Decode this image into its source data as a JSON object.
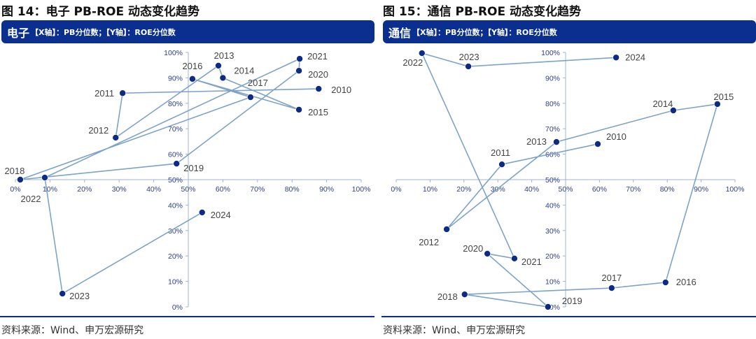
{
  "panels": [
    {
      "figure_title": "图 14：电子 PB-ROE 动态变化趋势",
      "header_industry": "电子",
      "header_axes": "【X轴】：PB分位数；【Y轴】：ROE分位数",
      "source": "资料来源：Wind、申万宏源研究"
    },
    {
      "figure_title": "图 15：通信 PB-ROE 动态变化趋势",
      "header_industry": "通信",
      "header_axes": "【X轴】：PB分位数；【Y轴】：ROE分位数",
      "source": "资料来源：Wind、申万宏源研究"
    }
  ],
  "colors": {
    "header": "#0b2f8f",
    "marker": "#0d2a86",
    "line": "#7ea3c9",
    "axis": "#9fb4d4",
    "tick_text": "#2c3f8c"
  },
  "chart_data": [
    {
      "type": "line",
      "title": "电子 PB-ROE 动态变化趋势",
      "xlabel": "PB分位数",
      "ylabel": "ROE分位数",
      "xlim": [
        0,
        1
      ],
      "ylim": [
        0,
        1
      ],
      "axes_cross": [
        0.5,
        0.5
      ],
      "grid": false,
      "x_ticks": [
        "0%",
        "10%",
        "20%",
        "30%",
        "40%",
        "50%",
        "60%",
        "70%",
        "80%",
        "90%",
        "100%"
      ],
      "y_ticks": [
        "0%",
        "10%",
        "20%",
        "30%",
        "40%",
        "50%",
        "60%",
        "70%",
        "80%",
        "90%",
        "100%"
      ],
      "points": [
        {
          "label": "2010",
          "x": 0.877,
          "y": 0.857
        },
        {
          "label": "2011",
          "x": 0.31,
          "y": 0.84
        },
        {
          "label": "2012",
          "x": 0.29,
          "y": 0.665
        },
        {
          "label": "2013",
          "x": 0.587,
          "y": 0.948
        },
        {
          "label": "2014",
          "x": 0.6,
          "y": 0.9
        },
        {
          "label": "2015",
          "x": 0.82,
          "y": 0.775
        },
        {
          "label": "2016",
          "x": 0.512,
          "y": 0.896
        },
        {
          "label": "2017",
          "x": 0.68,
          "y": 0.824
        },
        {
          "label": "2018",
          "x": 0.014,
          "y": 0.5
        },
        {
          "label": "2019",
          "x": 0.466,
          "y": 0.563
        },
        {
          "label": "2020",
          "x": 0.82,
          "y": 0.928
        },
        {
          "label": "2021",
          "x": 0.822,
          "y": 0.975
        },
        {
          "label": "2022",
          "x": 0.085,
          "y": 0.508
        },
        {
          "label": "2023",
          "x": 0.136,
          "y": 0.052
        },
        {
          "label": "2024",
          "x": 0.54,
          "y": 0.371
        }
      ]
    },
    {
      "type": "line",
      "title": "通信 PB-ROE 动态变化趋势",
      "xlabel": "PB分位数",
      "ylabel": "ROE分位数",
      "xlim": [
        0,
        1
      ],
      "ylim": [
        0,
        1
      ],
      "axes_cross": [
        0.5,
        0.5
      ],
      "grid": false,
      "x_ticks": [
        "0%",
        "10%",
        "20%",
        "30%",
        "40%",
        "50%",
        "60%",
        "70%",
        "80%",
        "90%",
        "100%"
      ],
      "y_ticks": [
        "0%",
        "10%",
        "20%",
        "30%",
        "40%",
        "50%",
        "60%",
        "70%",
        "80%",
        "90%",
        "100%"
      ],
      "points": [
        {
          "label": "2010",
          "x": 0.595,
          "y": 0.64
        },
        {
          "label": "2011",
          "x": 0.312,
          "y": 0.56
        },
        {
          "label": "2012",
          "x": 0.149,
          "y": 0.305
        },
        {
          "label": "2013",
          "x": 0.473,
          "y": 0.648
        },
        {
          "label": "2014",
          "x": 0.818,
          "y": 0.772
        },
        {
          "label": "2015",
          "x": 0.948,
          "y": 0.797
        },
        {
          "label": "2016",
          "x": 0.795,
          "y": 0.096
        },
        {
          "label": "2017",
          "x": 0.636,
          "y": 0.074
        },
        {
          "label": "2018",
          "x": 0.202,
          "y": 0.049
        },
        {
          "label": "2019",
          "x": 0.448,
          "y": 0.0
        },
        {
          "label": "2020",
          "x": 0.269,
          "y": 0.209
        },
        {
          "label": "2021",
          "x": 0.349,
          "y": 0.19
        },
        {
          "label": "2022",
          "x": 0.076,
          "y": 0.997
        },
        {
          "label": "2023",
          "x": 0.213,
          "y": 0.945
        },
        {
          "label": "2024",
          "x": 0.649,
          "y": 0.98
        }
      ]
    }
  ]
}
